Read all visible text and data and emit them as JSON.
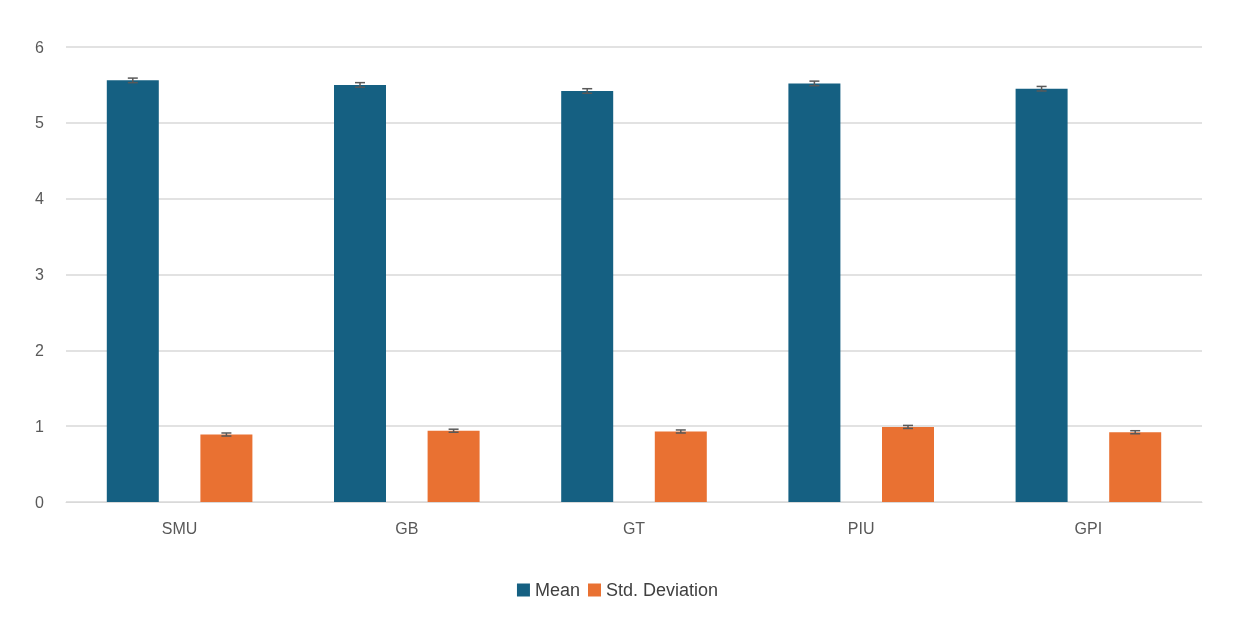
{
  "chart_data": {
    "type": "bar",
    "categories": [
      "SMU",
      "GB",
      "GT",
      "PIU",
      "GPI"
    ],
    "series": [
      {
        "name": "Mean",
        "color": "#156082",
        "values": [
          5.56,
          5.5,
          5.42,
          5.52,
          5.45
        ],
        "errors": [
          0.03,
          0.03,
          0.03,
          0.03,
          0.03
        ]
      },
      {
        "name": "Std. Deviation",
        "color": "#e97132",
        "values": [
          0.89,
          0.94,
          0.93,
          0.99,
          0.92
        ],
        "errors": [
          0.02,
          0.02,
          0.02,
          0.02,
          0.02
        ]
      }
    ],
    "ylim": [
      0,
      6
    ],
    "yticks": [
      0,
      1,
      2,
      3,
      4,
      5,
      6
    ],
    "grid": "y",
    "legend": "bottom"
  }
}
